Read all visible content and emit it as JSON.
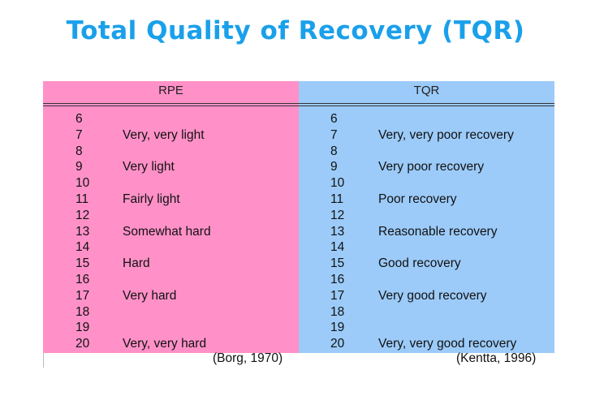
{
  "title": "Total Quality of Recovery (TQR)",
  "table": {
    "headers": {
      "rpe": "RPE",
      "tqr": "TQR"
    },
    "rows": [
      {
        "rpe_num": "6",
        "rpe_label": "",
        "tqr_num": "6",
        "tqr_label": ""
      },
      {
        "rpe_num": "7",
        "rpe_label": "Very, very light",
        "tqr_num": "7",
        "tqr_label": "Very, very poor recovery"
      },
      {
        "rpe_num": "8",
        "rpe_label": "",
        "tqr_num": "8",
        "tqr_label": ""
      },
      {
        "rpe_num": "9",
        "rpe_label": "Very light",
        "tqr_num": "9",
        "tqr_label": "Very poor recovery"
      },
      {
        "rpe_num": "10",
        "rpe_label": "",
        "tqr_num": "10",
        "tqr_label": ""
      },
      {
        "rpe_num": "11",
        "rpe_label": "Fairly light",
        "tqr_num": "11",
        "tqr_label": "Poor recovery"
      },
      {
        "rpe_num": "12",
        "rpe_label": "",
        "tqr_num": "12",
        "tqr_label": ""
      },
      {
        "rpe_num": "13",
        "rpe_label": "Somewhat hard",
        "tqr_num": "13",
        "tqr_label": "Reasonable recovery"
      },
      {
        "rpe_num": "14",
        "rpe_label": "",
        "tqr_num": "14",
        "tqr_label": ""
      },
      {
        "rpe_num": "15",
        "rpe_label": "Hard",
        "tqr_num": "15",
        "tqr_label": "Good recovery"
      },
      {
        "rpe_num": "16",
        "rpe_label": "",
        "tqr_num": "16",
        "tqr_label": ""
      },
      {
        "rpe_num": "17",
        "rpe_label": "Very hard",
        "tqr_num": "17",
        "tqr_label": "Very good recovery"
      },
      {
        "rpe_num": "18",
        "rpe_label": "",
        "tqr_num": "18",
        "tqr_label": ""
      },
      {
        "rpe_num": "19",
        "rpe_label": "",
        "tqr_num": "19",
        "tqr_label": ""
      },
      {
        "rpe_num": "20",
        "rpe_label": "Very, very hard",
        "tqr_num": "20",
        "tqr_label": "Very, very good recovery"
      }
    ],
    "sources": {
      "rpe": "(Borg, 1970)",
      "tqr": "(Kentta, 1996)"
    }
  },
  "colors": {
    "title": "#1aa0ea",
    "rpe_bg": "#ff91c8",
    "tqr_bg": "#9ccbf9"
  }
}
